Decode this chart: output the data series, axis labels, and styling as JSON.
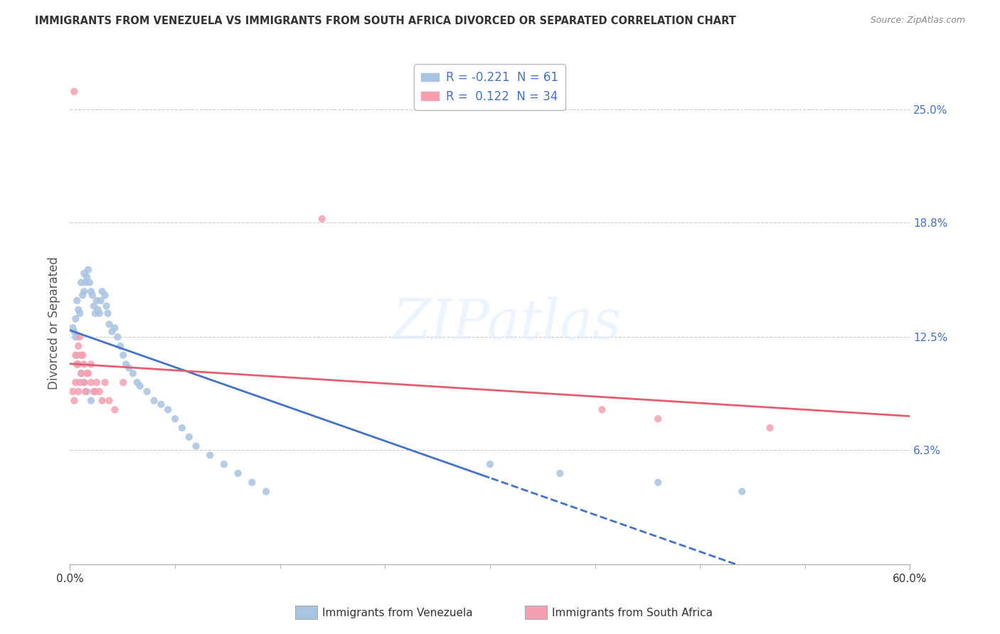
{
  "title": "IMMIGRANTS FROM VENEZUELA VS IMMIGRANTS FROM SOUTH AFRICA DIVORCED OR SEPARATED CORRELATION CHART",
  "source": "Source: ZipAtlas.com",
  "ylabel": "Divorced or Separated",
  "legend_label1": "Immigrants from Venezuela",
  "legend_label2": "Immigrants from South Africa",
  "r1": -0.221,
  "n1": 61,
  "r2": 0.122,
  "n2": 34,
  "color1": "#a8c4e0",
  "color2": "#f4a0b0",
  "trendline1_color": "#4472c4",
  "trendline2_color": "#e06070",
  "watermark": "ZIPatlas",
  "xlim": [
    0.0,
    0.6
  ],
  "ylim": [
    0.0,
    0.265
  ],
  "ytick_labels_right": [
    "6.3%",
    "12.5%",
    "18.8%",
    "25.0%"
  ],
  "ytick_values_right": [
    0.063,
    0.125,
    0.188,
    0.25
  ],
  "venezuela_x": [
    0.002,
    0.003,
    0.004,
    0.005,
    0.006,
    0.007,
    0.008,
    0.009,
    0.01,
    0.01,
    0.011,
    0.012,
    0.013,
    0.014,
    0.015,
    0.016,
    0.017,
    0.018,
    0.019,
    0.02,
    0.021,
    0.022,
    0.023,
    0.025,
    0.026,
    0.027,
    0.028,
    0.03,
    0.032,
    0.034,
    0.036,
    0.038,
    0.04,
    0.042,
    0.045,
    0.048,
    0.05,
    0.055,
    0.06,
    0.065,
    0.07,
    0.075,
    0.08,
    0.085,
    0.09,
    0.1,
    0.11,
    0.12,
    0.13,
    0.14,
    0.004,
    0.005,
    0.006,
    0.008,
    0.01,
    0.012,
    0.015,
    0.3,
    0.35,
    0.42,
    0.48
  ],
  "venezuela_y": [
    0.13,
    0.128,
    0.135,
    0.145,
    0.14,
    0.138,
    0.155,
    0.148,
    0.16,
    0.15,
    0.155,
    0.158,
    0.162,
    0.155,
    0.15,
    0.148,
    0.142,
    0.138,
    0.145,
    0.14,
    0.138,
    0.145,
    0.15,
    0.148,
    0.142,
    0.138,
    0.132,
    0.128,
    0.13,
    0.125,
    0.12,
    0.115,
    0.11,
    0.108,
    0.105,
    0.1,
    0.098,
    0.095,
    0.09,
    0.088,
    0.085,
    0.08,
    0.075,
    0.07,
    0.065,
    0.06,
    0.055,
    0.05,
    0.045,
    0.04,
    0.125,
    0.115,
    0.11,
    0.105,
    0.1,
    0.095,
    0.09,
    0.055,
    0.05,
    0.045,
    0.04
  ],
  "southafrica_x": [
    0.002,
    0.003,
    0.004,
    0.005,
    0.006,
    0.007,
    0.008,
    0.009,
    0.01,
    0.011,
    0.013,
    0.015,
    0.017,
    0.019,
    0.021,
    0.023,
    0.025,
    0.028,
    0.032,
    0.038,
    0.003,
    0.004,
    0.005,
    0.006,
    0.007,
    0.008,
    0.01,
    0.012,
    0.015,
    0.018,
    0.18,
    0.38,
    0.42,
    0.5
  ],
  "southafrica_y": [
    0.095,
    0.09,
    0.1,
    0.11,
    0.095,
    0.1,
    0.105,
    0.115,
    0.1,
    0.095,
    0.105,
    0.11,
    0.095,
    0.1,
    0.095,
    0.09,
    0.1,
    0.09,
    0.085,
    0.1,
    0.26,
    0.115,
    0.11,
    0.12,
    0.125,
    0.115,
    0.11,
    0.105,
    0.1,
    0.095,
    0.19,
    0.085,
    0.08,
    0.075
  ],
  "trendline1_x_solid_end": 0.3,
  "trendline1_x_end": 0.6,
  "trendline2_x_end": 0.6
}
